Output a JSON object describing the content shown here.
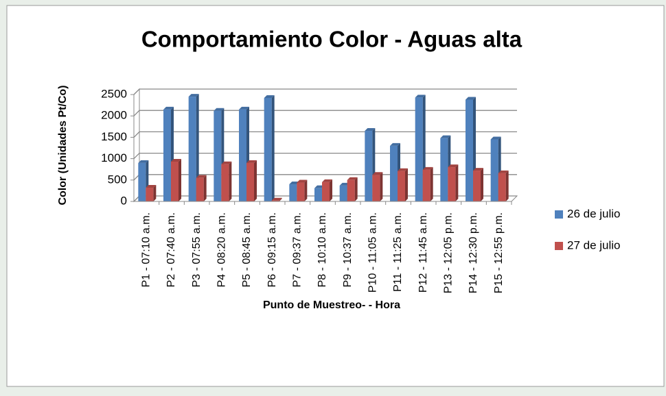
{
  "chart_data": {
    "type": "bar3d",
    "title": "Comportamiento Color - Aguas alta",
    "x_label": "Punto de Muestreo- - Hora",
    "y_label": "Color (Unidades Pt/Co)",
    "categories": [
      "P1 - 07:10 a.m.",
      "P2 - 07:40 a.m.",
      "P3 - 07:55 a.m.",
      "P4 - 08:20 a.m.",
      "P5 - 08:45 a.m.",
      "P6 - 09:15 a.m.",
      "P7 - 09:37 a.m.",
      "P8 - 10:10 a.m.",
      "P9 - 10:37 a.m.",
      "P10 - 11:05 a.m.",
      "P11 - 11:25 a.m.",
      "P12 - 11:45 a.m.",
      "P13 - 12:05 p.m.",
      "P14 - 12:30 p.m.",
      "P15 - 12:55 p.m."
    ],
    "series": [
      {
        "name": "26 de julio",
        "color": "#4f81bd",
        "values": [
          900,
          2150,
          2450,
          2120,
          2150,
          2420,
          400,
          310,
          370,
          1650,
          1300,
          2430,
          1480,
          2380,
          1450
        ]
      },
      {
        "name": "27 de julio",
        "color": "#c0504d",
        "values": [
          320,
          930,
          550,
          870,
          900,
          20,
          440,
          450,
          500,
          620,
          710,
          740,
          800,
          720,
          660
        ]
      }
    ],
    "ylim": [
      0,
      2500
    ],
    "yticks": [
      0,
      500,
      1000,
      1500,
      2000,
      2500
    ],
    "grid": true,
    "legend": "right"
  }
}
